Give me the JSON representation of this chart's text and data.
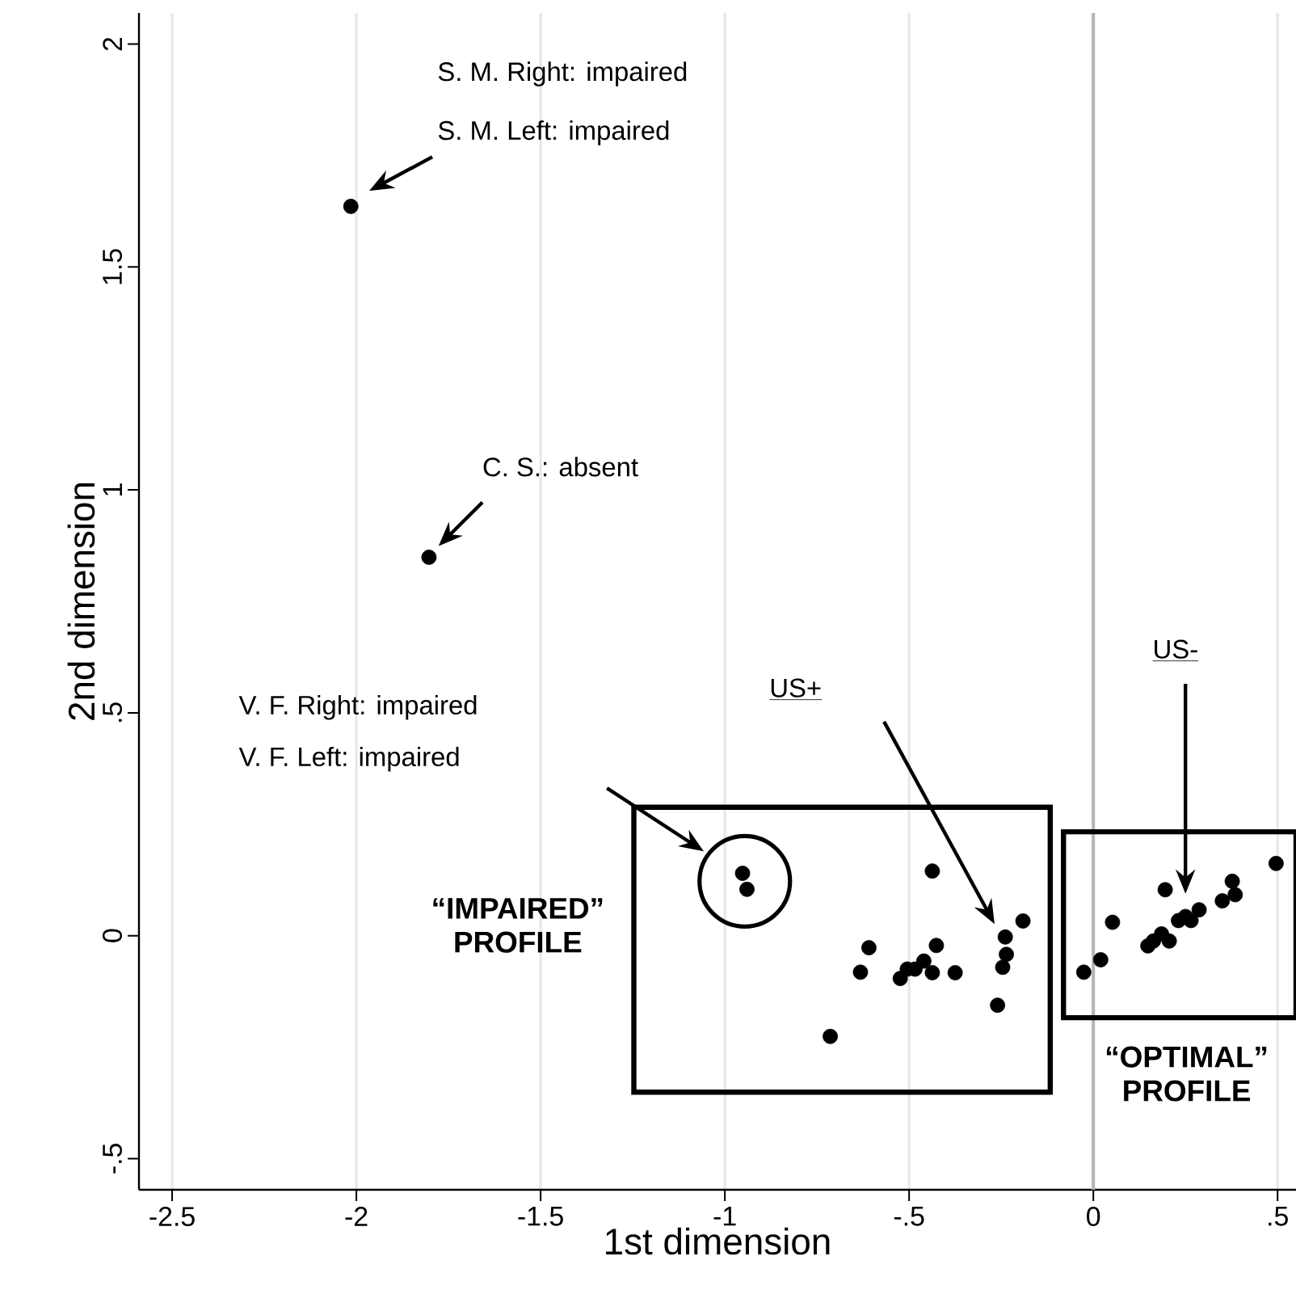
{
  "chart_data": {
    "type": "scatter",
    "xlabel": "1st dimension",
    "ylabel": "2nd dimension",
    "series": [
      {
        "color": "#000000",
        "x": [
          -2.015,
          -1.803,
          -0.952,
          -0.94,
          -0.437,
          -0.609,
          -0.632,
          -0.426,
          -0.524,
          -0.505,
          -0.484,
          -0.46,
          -0.437,
          -0.375,
          -0.714,
          -0.239,
          -0.236,
          -0.246,
          -0.191,
          -0.26,
          -0.026,
          0.02,
          0.052,
          0.195,
          0.148,
          0.163,
          0.185,
          0.206,
          0.231,
          0.25,
          0.265,
          0.287,
          0.35,
          0.377,
          0.385,
          0.496
        ],
        "values": [
          1.636,
          0.849,
          0.14,
          0.104,
          0.145,
          -0.027,
          -0.082,
          -0.022,
          -0.096,
          -0.075,
          -0.075,
          -0.057,
          -0.083,
          -0.083,
          -0.226,
          -0.003,
          -0.042,
          -0.071,
          0.033,
          -0.156,
          -0.082,
          -0.054,
          0.03,
          0.103,
          -0.023,
          -0.012,
          0.004,
          -0.012,
          0.034,
          0.043,
          0.034,
          0.058,
          0.078,
          0.122,
          0.092,
          0.162
        ]
      }
    ],
    "marker": "circle",
    "grid": "x",
    "xlim": [
      -2.59,
      0.55
    ],
    "ylim": [
      -0.57,
      2.07
    ],
    "xticks": [
      {
        "value": -2.5,
        "label": "-2.5"
      },
      {
        "value": -2,
        "label": "-2"
      },
      {
        "value": -1.5,
        "label": "-1.5"
      },
      {
        "value": -1,
        "label": "-1"
      },
      {
        "value": -0.5,
        "label": "-.5"
      },
      {
        "value": 0,
        "label": "0"
      },
      {
        "value": 0.5,
        "label": ".5"
      }
    ],
    "yticks": [
      {
        "value": -0.5,
        "label": "-.5"
      },
      {
        "value": 0,
        "label": "0"
      },
      {
        "value": 0.5,
        "label": ".5"
      },
      {
        "value": 1,
        "label": "1"
      },
      {
        "value": 1.5,
        "label": "1.5"
      },
      {
        "value": 2,
        "label": "2"
      }
    ],
    "ref_lines": [
      {
        "axis": "x",
        "value": 0,
        "color": "#b4b4b4"
      }
    ],
    "annotations": [
      "S. M. Right: impaired",
      "S. M. Left: impaired",
      "C. S.: absent",
      "V. F. Right: impaired",
      "V. F. Left: impaired",
      "US+",
      "US-",
      "“IMPAIRED” PROFILE",
      "“OPTIMAL” PROFILE"
    ]
  }
}
